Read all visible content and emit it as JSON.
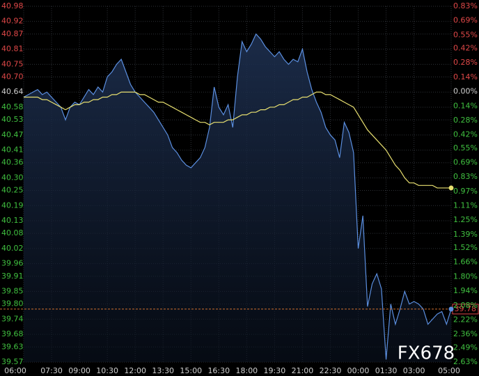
{
  "chart_data": {
    "type": "line",
    "x": [
      "06:00",
      null,
      null,
      null,
      null,
      null,
      "07:30",
      null,
      null,
      null,
      null,
      null,
      "09:00",
      null,
      null,
      null,
      null,
      null,
      "10:30",
      null,
      null,
      null,
      null,
      null,
      "12:00",
      null,
      null,
      null,
      null,
      null,
      "13:30",
      null,
      null,
      null,
      null,
      null,
      "15:00",
      null,
      null,
      null,
      null,
      null,
      "16:30",
      null,
      null,
      null,
      null,
      null,
      "18:00",
      null,
      null,
      null,
      null,
      null,
      "19:30",
      null,
      null,
      null,
      null,
      null,
      "21:00",
      null,
      null,
      null,
      null,
      null,
      "22:30",
      null,
      null,
      null,
      null,
      null,
      "00:00",
      null,
      null,
      null,
      null,
      null,
      "01:30",
      null,
      null,
      null,
      null,
      null,
      "03:00",
      null,
      null,
      null,
      null,
      null,
      null,
      null,
      "05:00"
    ],
    "series": [
      {
        "color": "#5b8fe0",
        "values": [
          40.62,
          40.63,
          40.64,
          40.65,
          40.63,
          40.64,
          40.62,
          40.6,
          40.58,
          40.53,
          40.58,
          40.6,
          40.59,
          40.62,
          40.65,
          40.63,
          40.66,
          40.64,
          40.7,
          40.72,
          40.75,
          40.77,
          40.72,
          40.67,
          40.64,
          40.62,
          40.6,
          40.58,
          40.56,
          40.53,
          40.5,
          40.47,
          40.42,
          40.4,
          40.37,
          40.35,
          40.34,
          40.36,
          40.38,
          40.42,
          40.5,
          40.66,
          40.58,
          40.55,
          40.59,
          40.5,
          40.7,
          40.84,
          40.8,
          40.83,
          40.87,
          40.85,
          40.82,
          40.8,
          40.78,
          40.8,
          40.77,
          40.75,
          40.77,
          40.76,
          40.81,
          40.72,
          40.65,
          40.6,
          40.56,
          40.5,
          40.47,
          40.45,
          40.38,
          40.52,
          40.48,
          40.4,
          40.02,
          40.15,
          39.79,
          39.88,
          39.92,
          39.86,
          39.58,
          39.8,
          39.72,
          39.78,
          39.85,
          39.8,
          39.81,
          39.8,
          39.78,
          39.72,
          39.74,
          39.76,
          39.77,
          39.72,
          39.78
        ]
      },
      {
        "color": "#e8e070",
        "values": [
          40.62,
          40.62,
          40.62,
          40.62,
          40.61,
          40.61,
          40.6,
          40.59,
          40.58,
          40.57,
          40.58,
          40.59,
          40.59,
          40.6,
          40.6,
          40.61,
          40.61,
          40.62,
          40.62,
          40.63,
          40.63,
          40.64,
          40.64,
          40.64,
          40.64,
          40.63,
          40.63,
          40.62,
          40.61,
          40.6,
          40.6,
          40.59,
          40.58,
          40.57,
          40.56,
          40.55,
          40.54,
          40.53,
          40.52,
          40.52,
          40.51,
          40.52,
          40.52,
          40.52,
          40.53,
          40.53,
          40.54,
          40.55,
          40.55,
          40.56,
          40.56,
          40.57,
          40.57,
          40.58,
          40.58,
          40.59,
          40.59,
          40.6,
          40.61,
          40.61,
          40.62,
          40.62,
          40.63,
          40.64,
          40.64,
          40.63,
          40.63,
          40.62,
          40.61,
          40.6,
          40.59,
          40.58,
          40.55,
          40.52,
          40.49,
          40.47,
          40.45,
          40.43,
          40.41,
          40.38,
          40.35,
          40.33,
          40.3,
          40.28,
          40.28,
          40.27,
          40.27,
          40.27,
          40.27,
          40.26,
          40.26,
          40.26,
          40.26
        ]
      }
    ],
    "ylim": [
      39.57,
      40.98
    ],
    "yticks": [
      40.98,
      40.92,
      40.87,
      40.81,
      40.75,
      {
        "value": 40.7,
        "label": "40.70"
      },
      40.64,
      40.58,
      40.53,
      40.47,
      40.41,
      40.36,
      {
        "value": 40.3,
        "label": "40.30"
      },
      40.25,
      40.19,
      40.13,
      40.08,
      40.02,
      39.96,
      39.91,
      39.85,
      {
        "value": 39.8,
        "label": "39.80"
      },
      39.74,
      39.68,
      39.63,
      39.57
    ],
    "y2lim": [
      -2.63,
      0.83
    ],
    "y2ticks": [
      {
        "value": 0.83,
        "label": "0.83%"
      },
      {
        "value": 0.69,
        "label": "0.69%"
      },
      {
        "value": 0.55,
        "label": "0.55%"
      },
      {
        "value": 0.42,
        "label": "0.42%"
      },
      {
        "value": 0.28,
        "label": "0.28%"
      },
      {
        "value": 0.14,
        "label": "0.14%"
      },
      {
        "value": 0,
        "label": "0.00%"
      },
      {
        "value": -0.14,
        "label": "0.14%"
      },
      {
        "value": -0.28,
        "label": "0.28%"
      },
      {
        "value": -0.42,
        "label": "0.42%"
      },
      {
        "value": -0.55,
        "label": "0.55%"
      },
      {
        "value": -0.69,
        "label": "0.69%"
      },
      {
        "value": -0.83,
        "label": "0.83%"
      },
      {
        "value": -0.97,
        "label": "0.97%"
      },
      {
        "value": -1.11,
        "label": "1.11%"
      },
      {
        "value": -1.25,
        "label": "1.25%"
      },
      {
        "value": -1.39,
        "label": "1.39%"
      },
      {
        "value": -1.52,
        "label": "1.52%"
      },
      {
        "value": -1.66,
        "label": "1.66%"
      },
      {
        "value": -1.8,
        "label": "1.80%"
      },
      {
        "value": -1.94,
        "label": "1.94%"
      },
      {
        "value": -2.08,
        "label": "2.08%"
      },
      {
        "value": -2.22,
        "label": "2.22%"
      },
      {
        "value": -2.36,
        "label": "2.36%"
      },
      {
        "value": -2.49,
        "label": "2.49%"
      },
      {
        "value": -2.63,
        "label": "2.63%"
      }
    ],
    "price_line": 39.78,
    "price_line_color": "#d07030",
    "up_color": "#e04848",
    "down_color": "#40c040",
    "flat_color": "#d0d0d0",
    "grid": true,
    "watermark": "FX678"
  }
}
